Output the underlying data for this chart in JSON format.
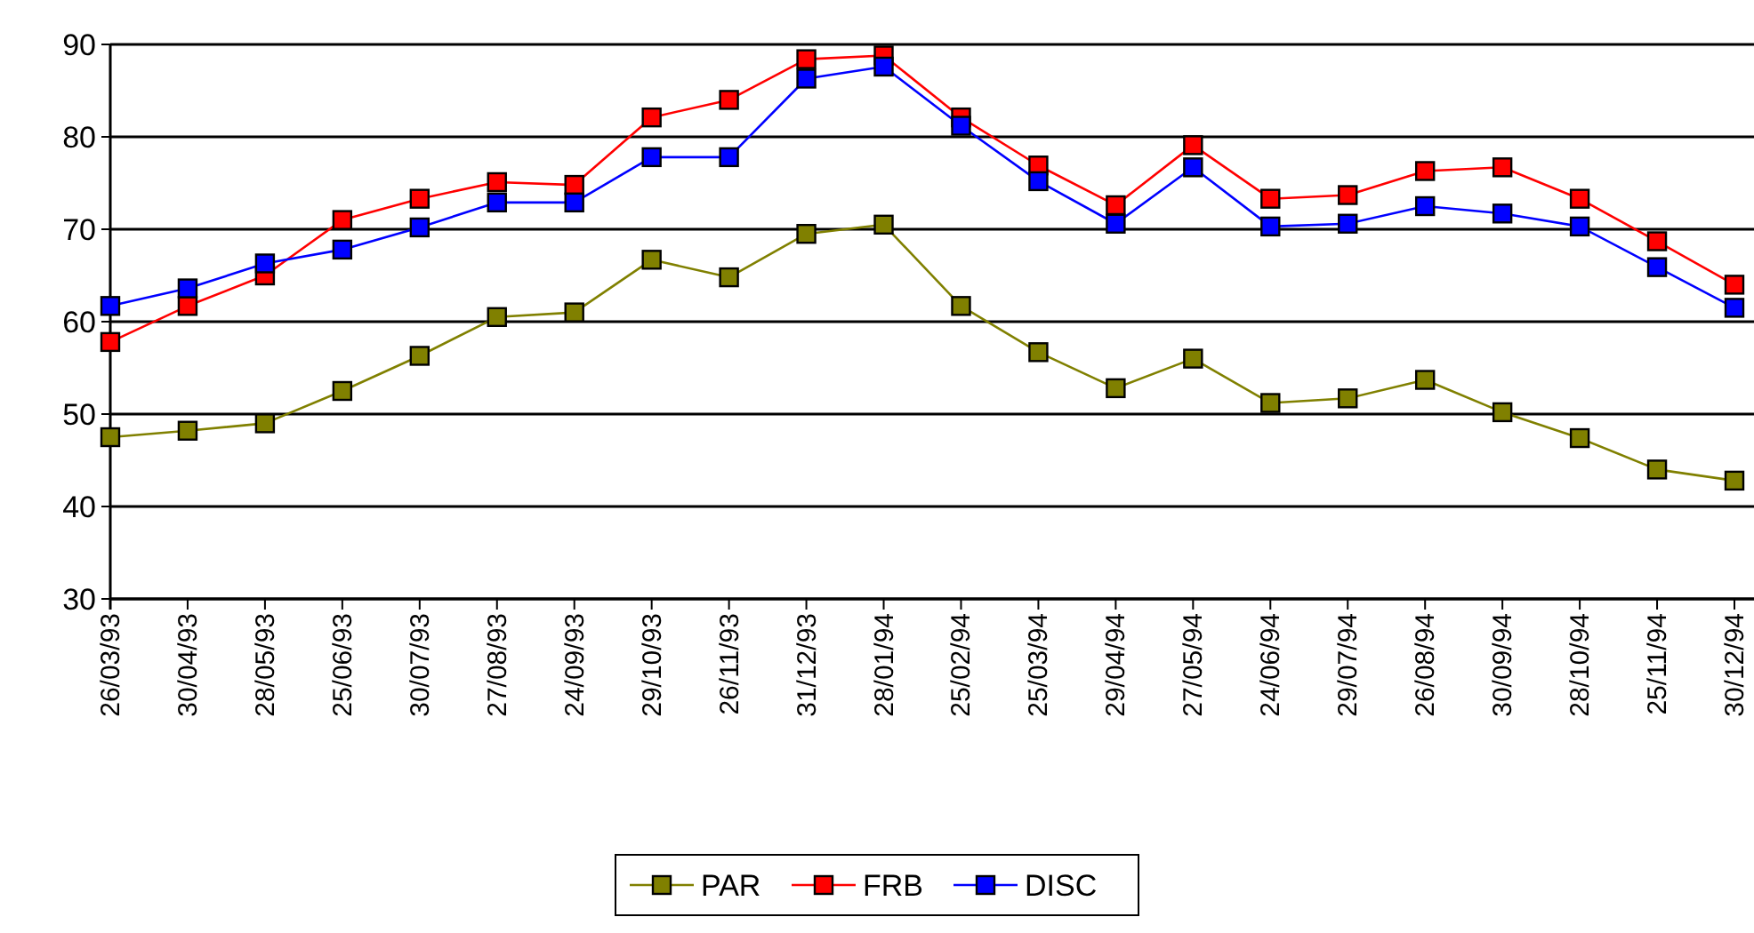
{
  "chart_data": {
    "type": "line",
    "categories": [
      "26/03/93",
      "30/04/93",
      "28/05/93",
      "25/06/93",
      "30/07/93",
      "27/08/93",
      "24/09/93",
      "29/10/93",
      "26/11/93",
      "31/12/93",
      "28/01/94",
      "25/02/94",
      "25/03/94",
      "29/04/94",
      "27/05/94",
      "24/06/94",
      "29/07/94",
      "26/08/94",
      "30/09/94",
      "28/10/94",
      "25/11/94",
      "30/12/94"
    ],
    "series": [
      {
        "name": "PAR",
        "color": "#808000",
        "values": [
          47.5,
          48.2,
          49,
          52.5,
          56.3,
          60.5,
          61,
          66.7,
          64.8,
          69.5,
          70.5,
          61.7,
          56.7,
          52.8,
          56,
          51.2,
          51.7,
          53.7,
          50.2,
          47.4,
          44,
          42.8
        ]
      },
      {
        "name": "FRB",
        "color": "#ff0000",
        "values": [
          57.8,
          61.7,
          65,
          71,
          73.3,
          75.1,
          74.8,
          82.1,
          84,
          88.4,
          88.8,
          82.1,
          76.9,
          72.6,
          79.1,
          73.3,
          73.7,
          76.3,
          76.7,
          73.3,
          68.7,
          64
        ]
      },
      {
        "name": "DISC",
        "color": "#0000ff",
        "values": [
          61.7,
          63.6,
          66.3,
          67.8,
          70.2,
          72.9,
          72.9,
          77.8,
          77.8,
          86.3,
          87.6,
          81.2,
          75.2,
          70.6,
          76.7,
          70.3,
          70.6,
          72.5,
          71.7,
          70.3,
          65.9,
          61.5
        ]
      }
    ],
    "ylim": [
      30,
      90
    ],
    "yticks": [
      30,
      40,
      50,
      60,
      70,
      80,
      90
    ],
    "grid": "y",
    "legend": "bottom",
    "marker": "square",
    "line_style": "solid"
  }
}
